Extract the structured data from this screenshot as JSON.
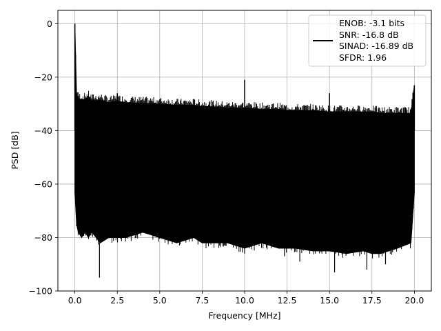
{
  "chart_data": {
    "type": "line",
    "title": "",
    "xlabel": "Frequency [MHz]",
    "ylabel": "PSD [dB]",
    "xlim": [
      -1.0,
      21.0
    ],
    "ylim": [
      -100,
      5
    ],
    "grid": true,
    "legend_placement": "top-right",
    "line_color": "#000000",
    "x_ticks": [
      {
        "value": 0.0,
        "label": "0.0"
      },
      {
        "value": 2.5,
        "label": "2.5"
      },
      {
        "value": 5.0,
        "label": "5.0"
      },
      {
        "value": 7.5,
        "label": "7.5"
      },
      {
        "value": 10.0,
        "label": "10.0"
      },
      {
        "value": 12.5,
        "label": "12.5"
      },
      {
        "value": 15.0,
        "label": "15.0"
      },
      {
        "value": 17.5,
        "label": "17.5"
      },
      {
        "value": 20.0,
        "label": "20.0"
      }
    ],
    "y_ticks": [
      {
        "value": 0,
        "label": "0"
      },
      {
        "value": -20,
        "label": "−20"
      },
      {
        "value": -40,
        "label": "−40"
      },
      {
        "value": -60,
        "label": "−60"
      },
      {
        "value": -80,
        "label": "−80"
      },
      {
        "value": -100,
        "label": "−100"
      }
    ],
    "legend": [
      "ENOB: -3.1 bits",
      "SNR: -16.8 dB",
      "SINAD: -16.89 dB",
      "SFDR: 1.96"
    ],
    "series": [
      {
        "x": [
          0.0,
          0.1,
          0.2,
          0.4,
          0.6,
          0.8,
          1.0,
          1.5,
          2.0,
          2.5,
          3.0,
          4.0,
          5.0,
          6.0,
          7.0,
          7.5,
          8.0,
          9.0,
          10.0,
          11.0,
          12.0,
          12.5,
          13.0,
          14.0,
          15.0,
          16.0,
          17.0,
          17.5,
          18.0,
          19.0,
          19.8,
          20.0
        ],
        "y_upper": [
          0,
          -26,
          -28,
          -28.5,
          -28.3,
          -27.5,
          -28.8,
          -28.5,
          -29.5,
          -29,
          -29.5,
          -29.8,
          -30,
          -30.5,
          -30.5,
          -31,
          -31,
          -31.5,
          -31.5,
          -32,
          -32,
          -32.5,
          -32.5,
          -32.5,
          -33,
          -33,
          -33,
          -33,
          -33.5,
          -33.5,
          -33.5,
          -23
        ],
        "y_lower": [
          -63,
          -75,
          -78,
          -80,
          -78,
          -80,
          -78,
          -82,
          -80,
          -80,
          -80,
          -78,
          -80,
          -82,
          -80,
          -82,
          -82,
          -82,
          -84,
          -82,
          -84,
          -84,
          -84,
          -85,
          -85,
          -86,
          -85,
          -86,
          -86,
          -84,
          -82,
          -63
        ]
      }
    ],
    "spikes": [
      {
        "x": 0.0,
        "y": 0
      },
      {
        "x": 2.5,
        "y": -26
      },
      {
        "x": 10.0,
        "y": -21
      },
      {
        "x": 15.0,
        "y": -26
      },
      {
        "x": 20.0,
        "y": -23
      }
    ],
    "dips": [
      {
        "x": 1.45,
        "y": -95
      },
      {
        "x": 10.0,
        "y": -86
      },
      {
        "x": 12.35,
        "y": -87
      },
      {
        "x": 13.25,
        "y": -89
      },
      {
        "x": 15.3,
        "y": -93
      },
      {
        "x": 17.2,
        "y": -92
      },
      {
        "x": 18.3,
        "y": -90
      }
    ]
  }
}
